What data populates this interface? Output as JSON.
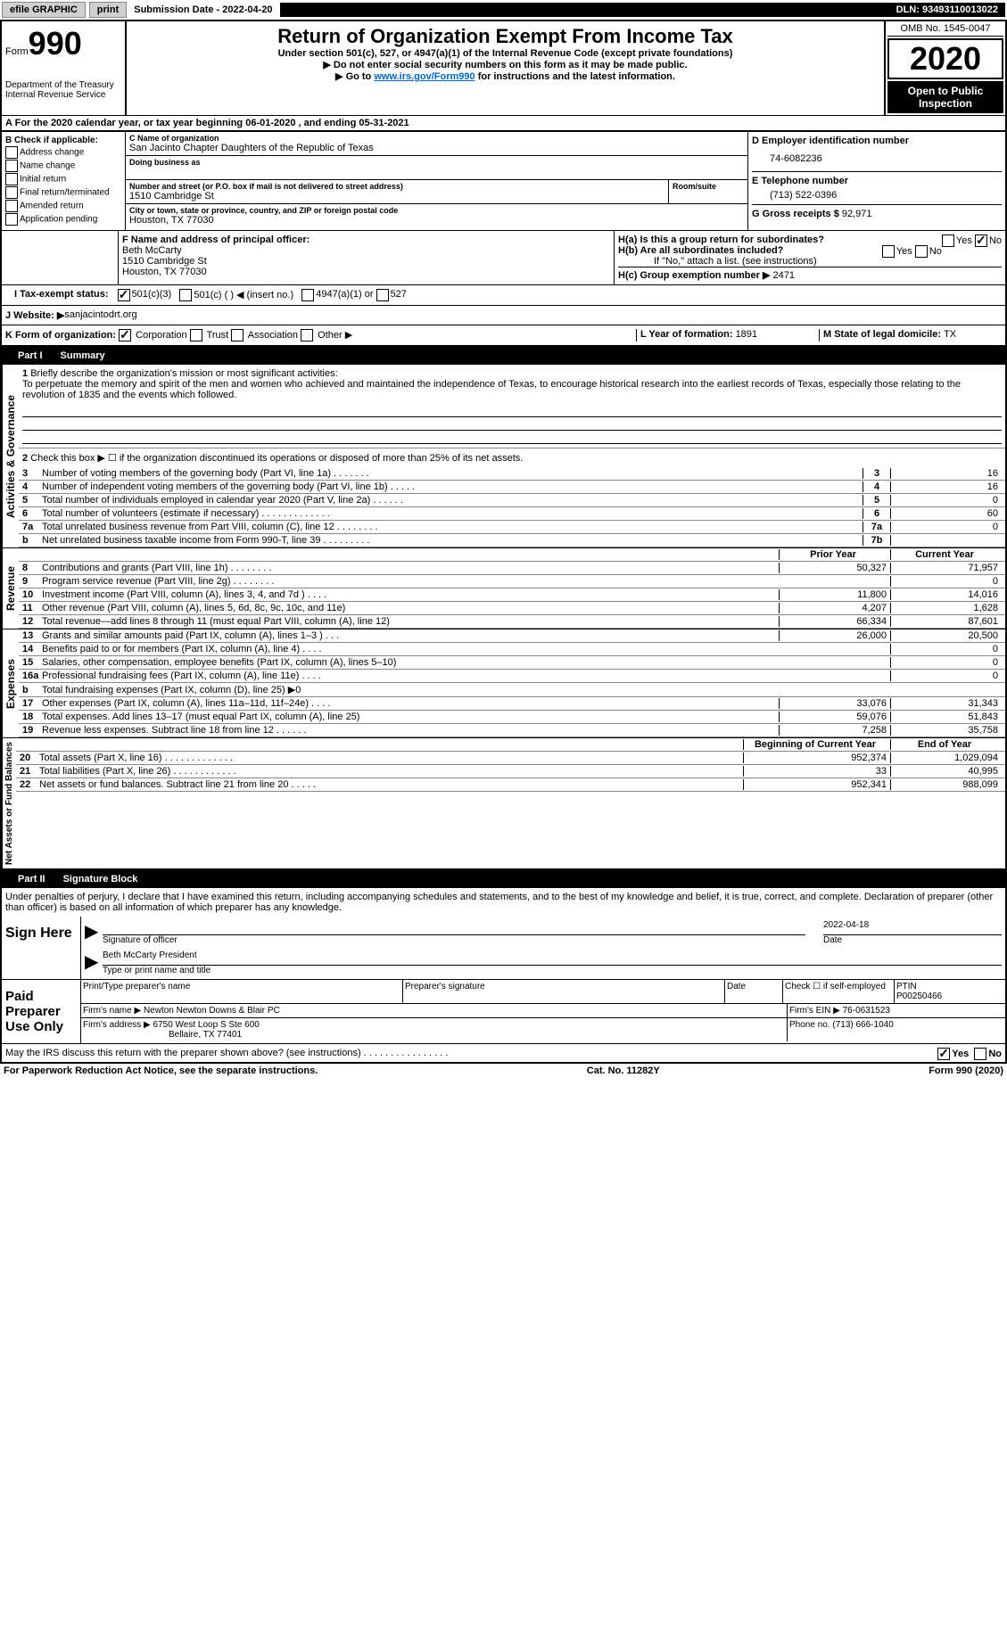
{
  "topbar": {
    "efile": "efile GRAPHIC",
    "print": "print",
    "sub_date_label": "Submission Date - ",
    "sub_date": "2022-04-20",
    "dln_label": "DLN: ",
    "dln": "93493110013022"
  },
  "header": {
    "form_label": "Form",
    "form_num": "990",
    "dept": "Department of the Treasury\nInternal Revenue Service",
    "title": "Return of Organization Exempt From Income Tax",
    "subtitle": "Under section 501(c), 527, or 4947(a)(1) of the Internal Revenue Code (except private foundations)",
    "warn": "▶ Do not enter social security numbers on this form as it may be made public.",
    "goto_pre": "▶ Go to ",
    "goto_link": "www.irs.gov/Form990",
    "goto_post": " for instructions and the latest information.",
    "omb": "OMB No. 1545-0047",
    "year": "2020",
    "open_pub": "Open to Public Inspection"
  },
  "period": {
    "a_label": "A",
    "text_pre": "For the 2020 calendar year, or tax year beginning ",
    "begin": "06-01-2020",
    "mid": "   , and ending ",
    "end": "05-31-2021"
  },
  "b": {
    "label": "B Check if applicable:",
    "items": [
      "Address change",
      "Name change",
      "Initial return",
      "Final return/terminated",
      "Amended return",
      "Application pending"
    ]
  },
  "c": {
    "name_label": "C Name of organization",
    "name": "San Jacinto Chapter Daughters of the Republic of Texas",
    "dba_label": "Doing business as",
    "addr_label": "Number and street (or P.O. box if mail is not delivered to street address)",
    "room_label": "Room/suite",
    "addr": "1510 Cambridge St",
    "city_label": "City or town, state or province, country, and ZIP or foreign postal code",
    "city": "Houston, TX  77030"
  },
  "d": {
    "ein_label": "D Employer identification number",
    "ein": "74-6082236",
    "e_label": "E Telephone number",
    "phone": "(713) 522-0396",
    "g_label": "G Gross receipts $ ",
    "g_val": "92,971"
  },
  "f": {
    "label": "F  Name and address of principal officer:",
    "name": "Beth McCarty",
    "addr1": "1510 Cambridge St",
    "addr2": "Houston, TX  77030"
  },
  "h": {
    "a_label": "H(a)  Is this a group return for subordinates?",
    "b_label": "H(b)  Are all subordinates included?",
    "b_note": "If \"No,\" attach a list. (see instructions)",
    "c_label": "H(c)  Group exemption number ▶  ",
    "c_val": "2471",
    "yes": "Yes",
    "no": "No"
  },
  "i": {
    "label": "I  Tax-exempt status:",
    "o1": "501(c)(3)",
    "o2": "501(c) (  ) ◀ (insert no.)",
    "o3": "4947(a)(1) or",
    "o4": "527"
  },
  "j": {
    "label": "J  Website: ▶  ",
    "val": "sanjacintodrt.org"
  },
  "k": {
    "label": "K Form of organization:",
    "o1": "Corporation",
    "o2": "Trust",
    "o3": "Association",
    "o4": "Other ▶"
  },
  "l": {
    "label": "L Year of formation: ",
    "val": "1891"
  },
  "m": {
    "label": "M State of legal domicile: ",
    "val": "TX"
  },
  "part1": {
    "num": "Part I",
    "title": "Summary",
    "section_gov": "Activities & Governance",
    "section_rev": "Revenue",
    "section_exp": "Expenses",
    "section_net": "Net Assets or Fund Balances",
    "line1_label": "Briefly describe the organization's mission or most significant activities:",
    "line1_text": "To perpetuate the memory and spirit of the men and women who achieved and maintained the independence of Texas, to encourage historical research into the earliest records of Texas, especially those relating to the revolution of 1835 and the events which followed.",
    "line2": "Check this box ▶ ☐  if the organization discontinued its operations or disposed of more than 25% of its net assets.",
    "prior_year": "Prior Year",
    "current_year": "Current Year",
    "begin_year": "Beginning of Current Year",
    "end_year": "End of Year",
    "rows_gov": [
      {
        "n": "3",
        "d": "Number of voting members of the governing body (Part VI, line 1a)  .   .   .   .   .   .   .",
        "box": "3",
        "v": "16"
      },
      {
        "n": "4",
        "d": "Number of independent voting members of the governing body (Part VI, line 1b)  .   .   .   .   .",
        "box": "4",
        "v": "16"
      },
      {
        "n": "5",
        "d": "Total number of individuals employed in calendar year 2020 (Part V, line 2a)  .   .   .   .   .   .",
        "box": "5",
        "v": "0"
      },
      {
        "n": "6",
        "d": "Total number of volunteers (estimate if necessary)  .   .   .   .   .   .   .   .   .   .   .   .   .",
        "box": "6",
        "v": "60"
      },
      {
        "n": "7a",
        "d": "Total unrelated business revenue from Part VIII, column (C), line 12  .   .   .   .   .   .   .   .",
        "box": "7a",
        "v": "0"
      },
      {
        "n": "b",
        "d": "Net unrelated business taxable income from Form 990-T, line 39  .   .   .   .   .   .   .   .   .",
        "box": "7b",
        "v": ""
      }
    ],
    "rows_rev": [
      {
        "n": "8",
        "d": "Contributions and grants (Part VIII, line 1h)  .   .   .   .   .   .   .   .",
        "py": "50,327",
        "cy": "71,957"
      },
      {
        "n": "9",
        "d": "Program service revenue (Part VIII, line 2g)  .   .   .   .   .   .   .   .",
        "py": "",
        "cy": "0"
      },
      {
        "n": "10",
        "d": "Investment income (Part VIII, column (A), lines 3, 4, and 7d )  .   .   .   .",
        "py": "11,800",
        "cy": "14,016"
      },
      {
        "n": "11",
        "d": "Other revenue (Part VIII, column (A), lines 5, 6d, 8c, 9c, 10c, and 11e)",
        "py": "4,207",
        "cy": "1,628"
      },
      {
        "n": "12",
        "d": "Total revenue—add lines 8 through 11 (must equal Part VIII, column (A), line 12)",
        "py": "66,334",
        "cy": "87,601"
      }
    ],
    "rows_exp": [
      {
        "n": "13",
        "d": "Grants and similar amounts paid (Part IX, column (A), lines 1–3 )  .   .   .",
        "py": "26,000",
        "cy": "20,500"
      },
      {
        "n": "14",
        "d": "Benefits paid to or for members (Part IX, column (A), line 4)  .   .   .   .",
        "py": "",
        "cy": "0"
      },
      {
        "n": "15",
        "d": "Salaries, other compensation, employee benefits (Part IX, column (A), lines 5–10)",
        "py": "",
        "cy": "0"
      },
      {
        "n": "16a",
        "d": "Professional fundraising fees (Part IX, column (A), line 11e)  .   .   .   .",
        "py": "",
        "cy": "0"
      },
      {
        "n": "b",
        "d": "Total fundraising expenses (Part IX, column (D), line 25) ▶0",
        "py": "shaded",
        "cy": "shaded"
      },
      {
        "n": "17",
        "d": "Other expenses (Part IX, column (A), lines 11a–11d, 11f–24e)  .   .   .   .",
        "py": "33,076",
        "cy": "31,343"
      },
      {
        "n": "18",
        "d": "Total expenses. Add lines 13–17 (must equal Part IX, column (A), line 25)",
        "py": "59,076",
        "cy": "51,843"
      },
      {
        "n": "19",
        "d": "Revenue less expenses. Subtract line 18 from line 12  .   .   .   .   .   .",
        "py": "7,258",
        "cy": "35,758"
      }
    ],
    "rows_net": [
      {
        "n": "20",
        "d": "Total assets (Part X, line 16)  .   .   .   .   .   .   .   .   .   .   .   .   .",
        "py": "952,374",
        "cy": "1,029,094"
      },
      {
        "n": "21",
        "d": "Total liabilities (Part X, line 26)  .   .   .   .   .   .   .   .   .   .   .   .",
        "py": "33",
        "cy": "40,995"
      },
      {
        "n": "22",
        "d": "Net assets or fund balances. Subtract line 21 from line 20  .   .   .   .   .",
        "py": "952,341",
        "cy": "988,099"
      }
    ]
  },
  "part2": {
    "num": "Part II",
    "title": "Signature Block",
    "penalty": "Under penalties of perjury, I declare that I have examined this return, including accompanying schedules and statements, and to the best of my knowledge and belief, it is true, correct, and complete. Declaration of preparer (other than officer) is based on all information of which preparer has any knowledge.",
    "sign_here": "Sign Here",
    "sig_officer": "Signature of officer",
    "sig_date": "Date",
    "sig_date_val": "2022-04-18",
    "officer_name": "Beth McCarty President",
    "type_name": "Type or print name and title",
    "paid": "Paid Preparer Use Only",
    "prep_name_label": "Print/Type preparer's name",
    "prep_sig_label": "Preparer's signature",
    "date_label": "Date",
    "check_self": "Check ☐ if self-employed",
    "ptin_label": "PTIN",
    "ptin": "P00250466",
    "firm_name_label": "Firm's name    ▶ ",
    "firm_name": "Newton Newton Downs & Blair PC",
    "firm_ein_label": "Firm's EIN ▶ ",
    "firm_ein": "76-0631523",
    "firm_addr_label": "Firm's address ▶ ",
    "firm_addr1": "6750 West Loop S Ste 600",
    "firm_addr2": "Bellaire, TX  77401",
    "phone_label": "Phone no. ",
    "phone": "(713) 666-1040",
    "discuss": "May the IRS discuss this return with the preparer shown above? (see instructions)  .   .   .   .   .   .   .   .   .   .   .   .   .   .   .   .",
    "yes": "Yes",
    "no": "No"
  },
  "footer": {
    "pra": "For Paperwork Reduction Act Notice, see the separate instructions.",
    "cat": "Cat. No. 11282Y",
    "form": "Form 990 (2020)"
  }
}
